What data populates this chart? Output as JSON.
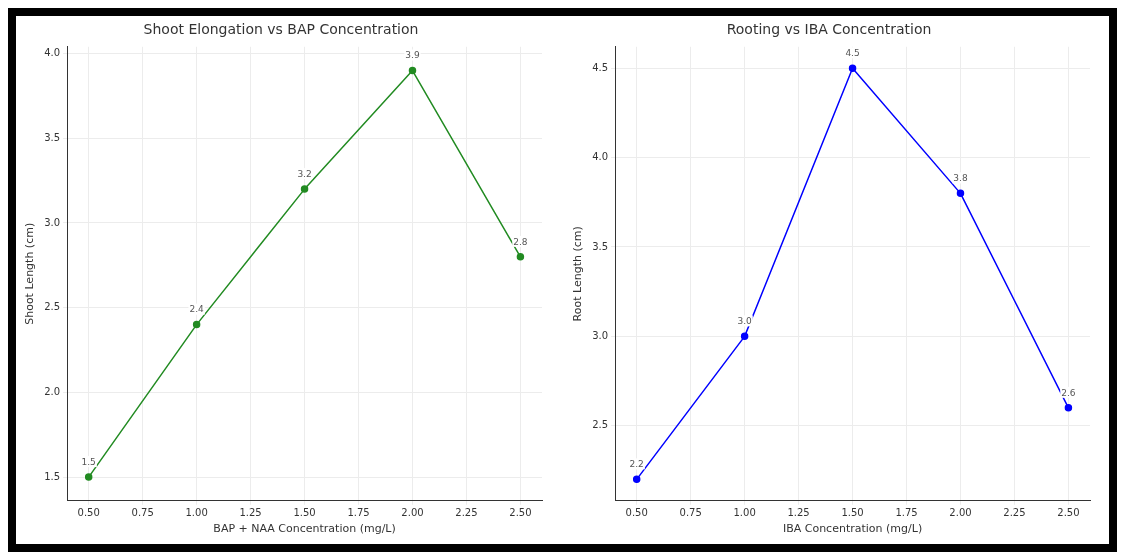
{
  "chart_data": [
    {
      "type": "line",
      "title": "Shoot Elongation vs BAP Concentration",
      "xlabel": "BAP + NAA Concentration (mg/L)",
      "ylabel": "Shoot Length (cm)",
      "x": [
        0.5,
        1.0,
        1.5,
        2.0,
        2.5
      ],
      "series": [
        {
          "color": "#228b22",
          "values": [
            1.5,
            2.4,
            3.2,
            3.9,
            2.8
          ],
          "value_labels": [
            "1.5",
            "2.4",
            "3.2",
            "3.9",
            "2.8"
          ]
        }
      ],
      "xlim": [
        0.4,
        2.6
      ],
      "xticks": [
        {
          "value": 0.5,
          "label": "0.50"
        },
        {
          "value": 0.75,
          "label": "0.75"
        },
        {
          "value": 1.0,
          "label": "1.00"
        },
        {
          "value": 1.25,
          "label": "1.25"
        },
        {
          "value": 1.5,
          "label": "1.50"
        },
        {
          "value": 1.75,
          "label": "1.75"
        },
        {
          "value": 2.0,
          "label": "2.00"
        },
        {
          "value": 2.25,
          "label": "2.25"
        },
        {
          "value": 2.5,
          "label": "2.50"
        }
      ],
      "ylim": [
        1.36,
        4.04
      ],
      "yticks": [
        1.5,
        {
          "value": 2,
          "label": "2.0"
        },
        2.5,
        {
          "value": 3,
          "label": "3.0"
        },
        3.5,
        {
          "value": 4,
          "label": "4.0"
        }
      ],
      "grid": true,
      "marker": "circle",
      "line_style": "solid"
    },
    {
      "type": "line",
      "title": "Rooting vs IBA Concentration",
      "xlabel": "IBA Concentration (mg/L)",
      "ylabel": "Root Length (cm)",
      "x": [
        0.5,
        1.0,
        1.5,
        2.0,
        2.5
      ],
      "series": [
        {
          "color": "#0000ff",
          "values": [
            2.2,
            3.0,
            4.5,
            3.8,
            2.6
          ],
          "value_labels": [
            "2.2",
            "3.0",
            "4.5",
            "3.8",
            "2.6"
          ]
        }
      ],
      "xlim": [
        0.4,
        2.6
      ],
      "xticks": [
        {
          "value": 0.5,
          "label": "0.50"
        },
        {
          "value": 0.75,
          "label": "0.75"
        },
        {
          "value": 1.0,
          "label": "1.00"
        },
        {
          "value": 1.25,
          "label": "1.25"
        },
        {
          "value": 1.5,
          "label": "1.50"
        },
        {
          "value": 1.75,
          "label": "1.75"
        },
        {
          "value": 2.0,
          "label": "2.00"
        },
        {
          "value": 2.25,
          "label": "2.25"
        },
        {
          "value": 2.5,
          "label": "2.50"
        }
      ],
      "ylim": [
        2.08,
        4.62
      ],
      "yticks": [
        2.5,
        {
          "value": 3,
          "label": "3.0"
        },
        3.5,
        {
          "value": 4,
          "label": "4.0"
        },
        4.5
      ],
      "grid": true,
      "marker": "circle",
      "line_style": "solid"
    }
  ]
}
